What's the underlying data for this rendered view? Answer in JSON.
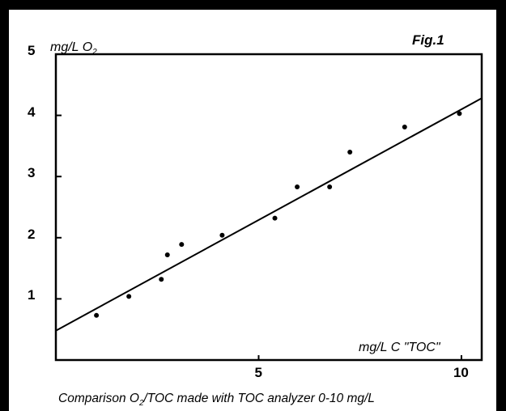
{
  "chart_data": {
    "type": "scatter",
    "figure_label": "Fig.1",
    "y_unit_label": {
      "prefix": "mg/L O",
      "subscript": "2"
    },
    "x_unit_label": "mg/L C \"TOC\"",
    "caption": {
      "part1": "Comparison  O",
      "subscript": "2",
      "part2": "/TOC made with TOC analyzer  0-10 mg/L"
    },
    "xlim": [
      0,
      10.5
    ],
    "ylim": [
      0,
      5
    ],
    "x_ticks": [
      {
        "value": 5,
        "label": "5"
      },
      {
        "value": 10,
        "label": "10"
      }
    ],
    "y_ticks": [
      {
        "value": 1,
        "label": "1"
      },
      {
        "value": 2,
        "label": "2"
      },
      {
        "value": 3,
        "label": "3"
      },
      {
        "value": 4,
        "label": "4"
      },
      {
        "value": 5,
        "label": "5"
      }
    ],
    "points": [
      {
        "x": 1.0,
        "y": 0.73
      },
      {
        "x": 1.8,
        "y": 1.04
      },
      {
        "x": 2.6,
        "y": 1.32
      },
      {
        "x": 2.75,
        "y": 1.72
      },
      {
        "x": 3.1,
        "y": 1.89
      },
      {
        "x": 4.1,
        "y": 2.04
      },
      {
        "x": 5.4,
        "y": 2.32
      },
      {
        "x": 5.95,
        "y": 2.83
      },
      {
        "x": 6.75,
        "y": 2.83
      },
      {
        "x": 7.25,
        "y": 3.4
      },
      {
        "x": 8.6,
        "y": 3.81
      },
      {
        "x": 9.95,
        "y": 4.03
      }
    ],
    "fit_line": {
      "x": [
        0,
        10.5
      ],
      "y": [
        0.48,
        4.28
      ]
    }
  }
}
